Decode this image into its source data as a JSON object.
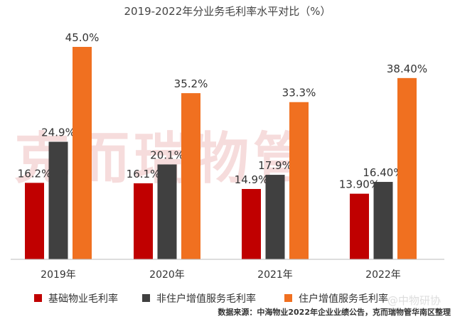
{
  "chart_data": {
    "type": "bar",
    "title": "2019-2022年分业务毛利率水平对比（%）",
    "categories": [
      "2019年",
      "2020年",
      "2021年",
      "2022年"
    ],
    "series": [
      {
        "name": "基础物业毛利率",
        "color": "#c00000",
        "values": [
          16.2,
          16.1,
          14.9,
          13.9
        ],
        "labels": [
          "16.2%",
          "16.1%",
          "14.9%",
          "13.90%"
        ]
      },
      {
        "name": "非住户增值服务毛利率",
        "color": "#404040",
        "values": [
          24.9,
          20.1,
          17.9,
          16.4
        ],
        "labels": [
          "24.9%",
          "20.1%",
          "17.9%",
          "16.40%"
        ]
      },
      {
        "name": "住户增值服务毛利率",
        "color": "#f07020",
        "values": [
          45.0,
          35.2,
          33.3,
          38.4
        ],
        "labels": [
          "45.0%",
          "35.2%",
          "33.3%",
          "38.40%"
        ]
      }
    ],
    "ylim": [
      0,
      45
    ],
    "legend": "bottom",
    "grid": false
  },
  "source": "数据来源：中海物业2022年企业业绩公告，克而瑞物管华南区整理",
  "watermark": "克而瑞物管",
  "watermark2": "@中物研协"
}
